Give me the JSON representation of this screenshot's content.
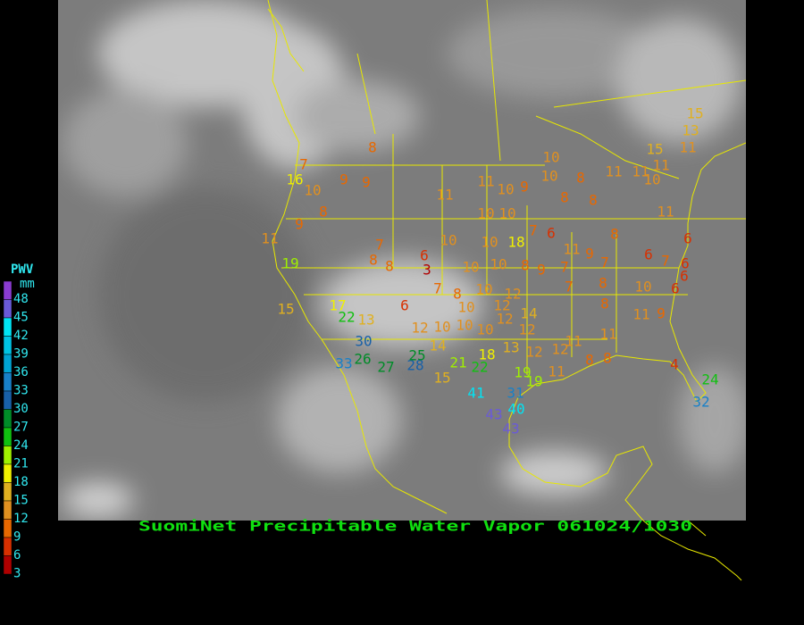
{
  "title": "SuomiNet Precipitable Water Vapor 061024/1030",
  "legend": {
    "title": "PWV",
    "unit": "mm",
    "levels": [
      {
        "value": 48,
        "color": "#8a3cd0"
      },
      {
        "value": 45,
        "color": "#6a5ad8"
      },
      {
        "value": 42,
        "color": "#00e4f4"
      },
      {
        "value": 39,
        "color": "#00c4e4"
      },
      {
        "value": 36,
        "color": "#00a4d4"
      },
      {
        "value": 33,
        "color": "#1880c8"
      },
      {
        "value": 30,
        "color": "#1860a8"
      },
      {
        "value": 27,
        "color": "#008c28"
      },
      {
        "value": 24,
        "color": "#10c010"
      },
      {
        "value": 21,
        "color": "#a0f000"
      },
      {
        "value": 18,
        "color": "#f0f000"
      },
      {
        "value": 15,
        "color": "#e0b020"
      },
      {
        "value": 12,
        "color": "#e09020"
      },
      {
        "value": 9,
        "color": "#e86800"
      },
      {
        "value": 6,
        "color": "#d83000"
      },
      {
        "value": 3,
        "color": "#b00000"
      }
    ]
  },
  "stations": [
    8,
    7,
    16,
    10,
    9,
    9,
    8,
    9,
    11,
    19,
    11,
    11,
    10,
    9,
    10,
    10,
    8,
    8,
    8,
    11,
    11,
    10,
    11,
    15,
    11,
    13,
    15,
    11,
    10,
    10,
    10,
    10,
    18,
    7,
    6,
    11,
    9,
    8,
    7,
    8,
    8,
    6,
    3,
    10,
    10,
    8,
    9,
    7,
    7,
    6,
    7,
    6,
    6,
    6,
    7,
    8,
    10,
    12,
    10,
    12,
    7,
    8,
    10,
    6,
    8,
    11,
    9,
    6,
    15,
    17,
    22,
    13,
    12,
    10,
    10,
    10,
    12,
    14,
    12,
    30,
    14,
    13,
    12,
    12,
    11,
    11,
    33,
    26,
    27,
    28,
    25,
    21,
    22,
    18,
    15,
    19,
    19,
    11,
    8,
    8,
    4,
    24,
    32,
    41,
    31,
    40,
    43,
    43
  ]
}
